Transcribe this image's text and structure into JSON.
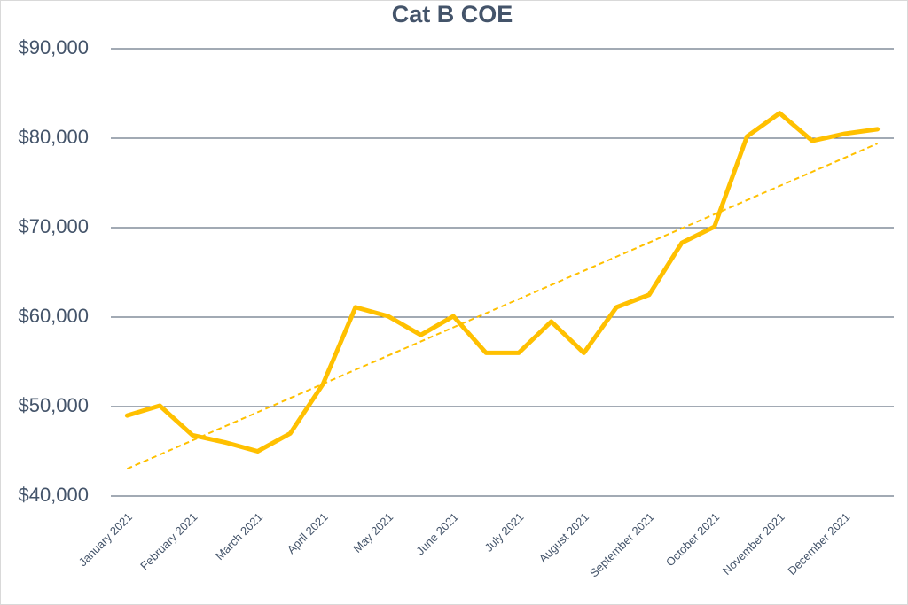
{
  "chart_data": {
    "type": "line",
    "title": "Cat B COE",
    "categories": [
      "January 2021",
      null,
      "February 2021",
      null,
      "March 2021",
      null,
      "April 2021",
      null,
      "May 2021",
      null,
      "June 2021",
      null,
      "July 2021",
      null,
      "August 2021",
      null,
      "September 2021",
      null,
      "October 2021",
      null,
      "November 2021",
      null,
      "December 2021",
      null
    ],
    "series": [
      {
        "name": "Cat B COE",
        "color": "#ffc000",
        "values": [
          49000,
          50100,
          46800,
          46000,
          45000,
          47000,
          52500,
          61100,
          60100,
          58000,
          60100,
          56000,
          56000,
          59500,
          56000,
          61100,
          62500,
          68300,
          70100,
          80200,
          82800,
          79700,
          80500,
          81000
        ]
      }
    ],
    "trendline": "linear",
    "ylim": [
      40000,
      90000
    ],
    "yticks": [
      {
        "value": 40000,
        "label": "$40,000"
      },
      {
        "value": 50000,
        "label": "$50,000"
      },
      {
        "value": 60000,
        "label": "$60,000"
      },
      {
        "value": 70000,
        "label": "$70,000"
      },
      {
        "value": 80000,
        "label": "$80,000"
      },
      {
        "value": 90000,
        "label": "$90,000"
      }
    ],
    "grid": true
  }
}
